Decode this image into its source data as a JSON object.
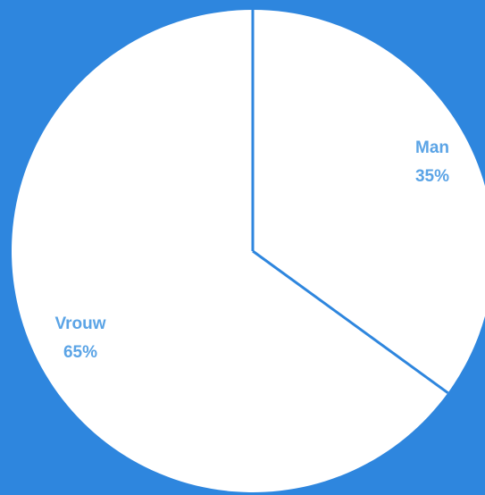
{
  "colors": {
    "background": "#2e86de",
    "slice_fill": "#ffffff",
    "slice_border": "#2e86de",
    "label_color": "#5ba4e6"
  },
  "chart_data": {
    "type": "pie",
    "categories": [
      "Man",
      "Vrouw"
    ],
    "values": [
      35,
      65
    ],
    "labels": [
      {
        "name": "Man",
        "value_text": "35%"
      },
      {
        "name": "Vrouw",
        "value_text": "65%"
      }
    ],
    "start": "top",
    "direction": "clockwise"
  }
}
